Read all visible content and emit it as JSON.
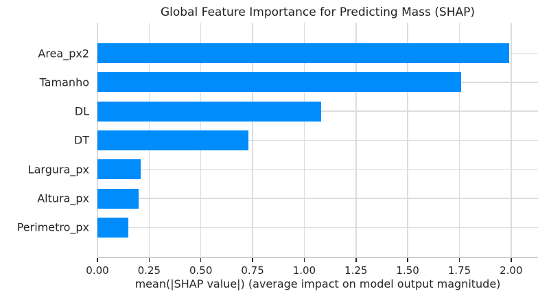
{
  "chart_data": {
    "type": "bar",
    "orientation": "horizontal",
    "title": "Global Feature Importance for Predicting Mass (SHAP)",
    "categories": [
      "Area_px2",
      "Tamanho",
      "DL",
      "DT",
      "Largura_px",
      "Altura_px",
      "Perimetro_px"
    ],
    "values": [
      1.99,
      1.76,
      1.08,
      0.73,
      0.21,
      0.2,
      0.15
    ],
    "xlabel": "mean(|SHAP value|) (average impact on model output magnitude)",
    "ylabel": "",
    "xlim": [
      0,
      2.13
    ],
    "x_tick_values": [
      0,
      0.25,
      0.5,
      0.75,
      1.0,
      1.25,
      1.5,
      1.75,
      2.0
    ],
    "x_tick_labels": [
      "0.00",
      "0.25",
      "0.50",
      "0.75",
      "1.00",
      "1.25",
      "1.50",
      "1.75",
      "2.00"
    ],
    "grid": true,
    "legend": false,
    "colors": {
      "bar": "#008cfb",
      "grid": "#dcdcdc",
      "spine": "#cfcfcf",
      "tick": "#262626",
      "text": "#262626",
      "background": "#ffffff"
    }
  }
}
